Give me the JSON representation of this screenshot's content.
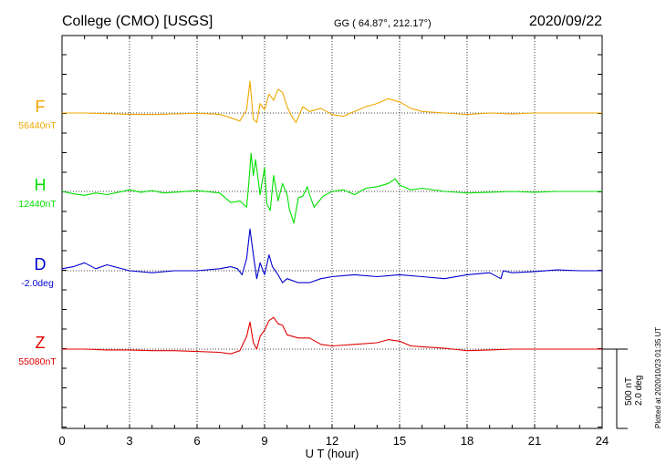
{
  "header": {
    "station": "College (CMO)  [USGS]",
    "coords": "GG ( 64.87°, 212.17°)",
    "date": "2020/09/22"
  },
  "chart_data": {
    "type": "line",
    "xlabel": "U T (hour)",
    "xlim": [
      0,
      24
    ],
    "xticks": [
      "0",
      "3",
      "6",
      "9",
      "12",
      "15",
      "18",
      "21",
      "24"
    ],
    "scale_bar": {
      "label_nt": "500 nT",
      "label_deg": "2.0 deg",
      "value_nt": 500,
      "value_deg": 2.0
    },
    "plotted_note": "Plotted at 2020/10/23 01:35 UT",
    "grid": "dotted, every 3 hours",
    "series": [
      {
        "name": "F",
        "baseline_label": "56440nT",
        "baseline": 56440,
        "unit": "nT",
        "color": "#f0a800",
        "points": [
          [
            0,
            0
          ],
          [
            1,
            0
          ],
          [
            2,
            -4
          ],
          [
            3,
            -8
          ],
          [
            4,
            -10
          ],
          [
            5,
            -6
          ],
          [
            6,
            -2
          ],
          [
            7,
            -8
          ],
          [
            7.5,
            -30
          ],
          [
            7.9,
            -50
          ],
          [
            8.2,
            20
          ],
          [
            8.35,
            200
          ],
          [
            8.5,
            -40
          ],
          [
            8.65,
            -60
          ],
          [
            8.8,
            60
          ],
          [
            9,
            20
          ],
          [
            9.2,
            120
          ],
          [
            9.4,
            80
          ],
          [
            9.6,
            150
          ],
          [
            9.8,
            130
          ],
          [
            10,
            40
          ],
          [
            10.2,
            -20
          ],
          [
            10.4,
            -60
          ],
          [
            10.7,
            40
          ],
          [
            11,
            10
          ],
          [
            11.5,
            30
          ],
          [
            12,
            -10
          ],
          [
            12.5,
            -20
          ],
          [
            13,
            10
          ],
          [
            13.5,
            40
          ],
          [
            14,
            60
          ],
          [
            14.5,
            90
          ],
          [
            15,
            70
          ],
          [
            15.5,
            30
          ],
          [
            16,
            10
          ],
          [
            17,
            0
          ],
          [
            18,
            -10
          ],
          [
            19,
            0
          ],
          [
            20,
            -5
          ],
          [
            21,
            0
          ],
          [
            22,
            0
          ],
          [
            23,
            0
          ],
          [
            24,
            0
          ]
        ]
      },
      {
        "name": "H",
        "baseline_label": "12440nT",
        "baseline": 12440,
        "unit": "nT",
        "color": "#00e000",
        "points": [
          [
            0,
            0
          ],
          [
            0.5,
            -15
          ],
          [
            1,
            -25
          ],
          [
            1.5,
            -10
          ],
          [
            2,
            -20
          ],
          [
            2.5,
            -5
          ],
          [
            3,
            10
          ],
          [
            3.5,
            -5
          ],
          [
            4,
            5
          ],
          [
            4.5,
            -10
          ],
          [
            5,
            -5
          ],
          [
            6,
            5
          ],
          [
            7,
            -10
          ],
          [
            7.5,
            -70
          ],
          [
            7.9,
            -60
          ],
          [
            8.2,
            -100
          ],
          [
            8.3,
            50
          ],
          [
            8.4,
            240
          ],
          [
            8.5,
            100
          ],
          [
            8.6,
            200
          ],
          [
            8.8,
            -20
          ],
          [
            9,
            150
          ],
          [
            9.1,
            -80
          ],
          [
            9.25,
            -120
          ],
          [
            9.4,
            100
          ],
          [
            9.6,
            -60
          ],
          [
            9.8,
            50
          ],
          [
            10,
            -20
          ],
          [
            10.1,
            -110
          ],
          [
            10.3,
            -200
          ],
          [
            10.5,
            -40
          ],
          [
            10.7,
            -30
          ],
          [
            10.9,
            30
          ],
          [
            11,
            -20
          ],
          [
            11.2,
            -100
          ],
          [
            11.6,
            -30
          ],
          [
            12,
            0
          ],
          [
            12.5,
            10
          ],
          [
            13,
            -20
          ],
          [
            13.5,
            20
          ],
          [
            14,
            30
          ],
          [
            14.5,
            50
          ],
          [
            14.8,
            80
          ],
          [
            15,
            40
          ],
          [
            15.5,
            10
          ],
          [
            16,
            20
          ],
          [
            17,
            0
          ],
          [
            18,
            -10
          ],
          [
            19,
            -5
          ],
          [
            20,
            0
          ],
          [
            21,
            -5
          ],
          [
            22,
            0
          ],
          [
            23,
            0
          ],
          [
            24,
            0
          ]
        ]
      },
      {
        "name": "D",
        "baseline_label": "-2.0deg",
        "baseline": -2.0,
        "unit": "deg",
        "color": "#0000d0",
        "points": [
          [
            0,
            0.05
          ],
          [
            0.5,
            0.1
          ],
          [
            1,
            0.2
          ],
          [
            1.5,
            0.05
          ],
          [
            2,
            0.15
          ],
          [
            3,
            0
          ],
          [
            4,
            -0.05
          ],
          [
            5,
            0
          ],
          [
            6,
            0
          ],
          [
            7,
            0.05
          ],
          [
            7.5,
            0.1
          ],
          [
            7.8,
            0.05
          ],
          [
            8,
            -0.1
          ],
          [
            8.2,
            0.3
          ],
          [
            8.35,
            1.05
          ],
          [
            8.5,
            0.4
          ],
          [
            8.65,
            -0.2
          ],
          [
            8.8,
            0.2
          ],
          [
            9,
            -0.1
          ],
          [
            9.2,
            0.4
          ],
          [
            9.35,
            0.1
          ],
          [
            9.6,
            -0.1
          ],
          [
            9.8,
            -0.3
          ],
          [
            10,
            -0.2
          ],
          [
            10.5,
            -0.3
          ],
          [
            11,
            -0.3
          ],
          [
            11.5,
            -0.2
          ],
          [
            12,
            -0.15
          ],
          [
            13,
            -0.1
          ],
          [
            14,
            -0.15
          ],
          [
            15,
            -0.1
          ],
          [
            16,
            -0.15
          ],
          [
            17,
            -0.2
          ],
          [
            18,
            -0.1
          ],
          [
            19,
            -0.05
          ],
          [
            19.5,
            -0.2
          ],
          [
            19.6,
            0
          ],
          [
            20,
            -0.05
          ],
          [
            21,
            -0.02
          ],
          [
            22,
            0.02
          ],
          [
            23,
            0
          ],
          [
            24,
            0
          ]
        ]
      },
      {
        "name": "Z",
        "baseline_label": "55080nT",
        "baseline": 55080,
        "unit": "nT",
        "color": "#e00000",
        "points": [
          [
            0,
            0
          ],
          [
            1,
            0
          ],
          [
            2,
            -5
          ],
          [
            3,
            -5
          ],
          [
            4,
            -10
          ],
          [
            5,
            -10
          ],
          [
            6,
            -15
          ],
          [
            7,
            -20
          ],
          [
            7.5,
            -30
          ],
          [
            7.9,
            -10
          ],
          [
            8.2,
            80
          ],
          [
            8.35,
            170
          ],
          [
            8.5,
            40
          ],
          [
            8.65,
            0
          ],
          [
            8.8,
            80
          ],
          [
            9,
            120
          ],
          [
            9.2,
            180
          ],
          [
            9.4,
            200
          ],
          [
            9.6,
            160
          ],
          [
            9.8,
            150
          ],
          [
            10,
            90
          ],
          [
            10.5,
            70
          ],
          [
            11,
            70
          ],
          [
            11.5,
            30
          ],
          [
            12,
            20
          ],
          [
            13,
            30
          ],
          [
            14,
            40
          ],
          [
            14.5,
            60
          ],
          [
            15,
            50
          ],
          [
            15.5,
            20
          ],
          [
            16,
            15
          ],
          [
            17,
            5
          ],
          [
            18,
            -10
          ],
          [
            19,
            -5
          ],
          [
            20,
            0
          ],
          [
            21,
            0
          ],
          [
            22,
            0
          ],
          [
            23,
            0
          ],
          [
            24,
            0
          ]
        ]
      }
    ]
  }
}
